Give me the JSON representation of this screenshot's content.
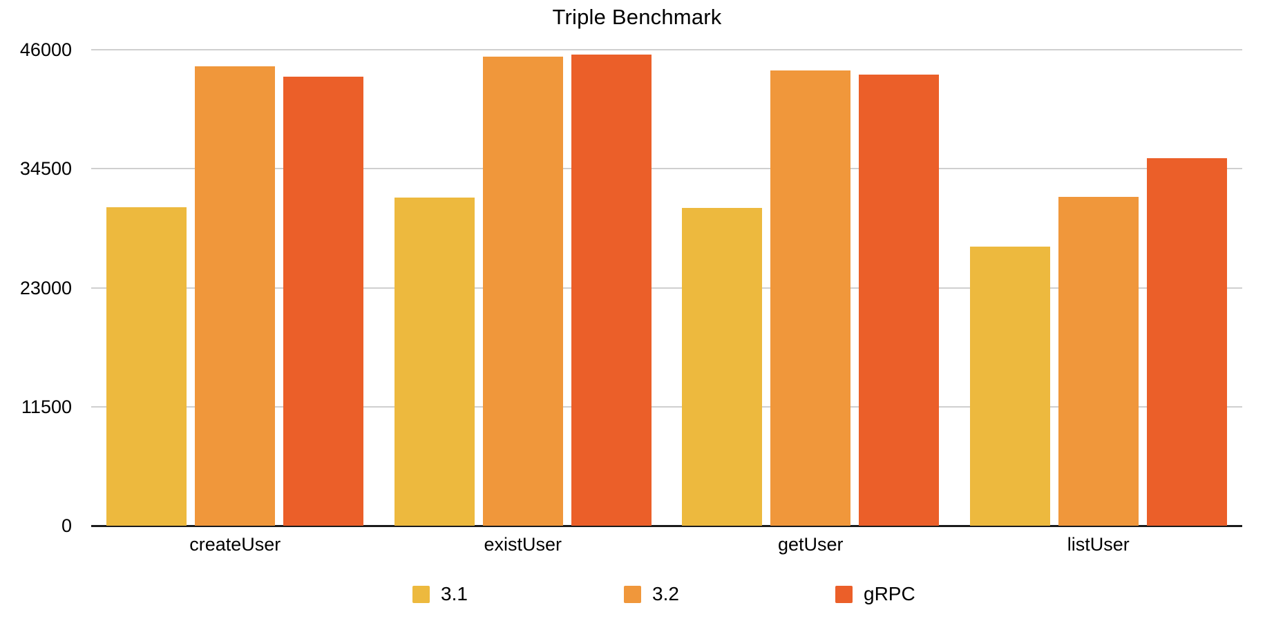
{
  "chart_data": {
    "type": "bar",
    "title": "Triple Benchmark",
    "categories": [
      "createUser",
      "existUser",
      "getUser",
      "listUser"
    ],
    "series": [
      {
        "name": "3.1",
        "color": "#EDB93E",
        "values": [
          30800,
          31700,
          30700,
          27000
        ]
      },
      {
        "name": "3.2",
        "color": "#F0973B",
        "values": [
          44400,
          45300,
          44000,
          31800
        ]
      },
      {
        "name": "gRPC",
        "color": "#EB5F29",
        "values": [
          43400,
          45500,
          43600,
          35500
        ]
      }
    ],
    "ylim": [
      0,
      46000
    ],
    "yticks": [
      0,
      11500,
      23000,
      34500,
      46000
    ],
    "grid": true,
    "legend_position": "bottom",
    "colors": {
      "gridline": "#cfcfcf",
      "axis": "#1a1a1a",
      "text": "#000000",
      "background": "#ffffff"
    }
  }
}
